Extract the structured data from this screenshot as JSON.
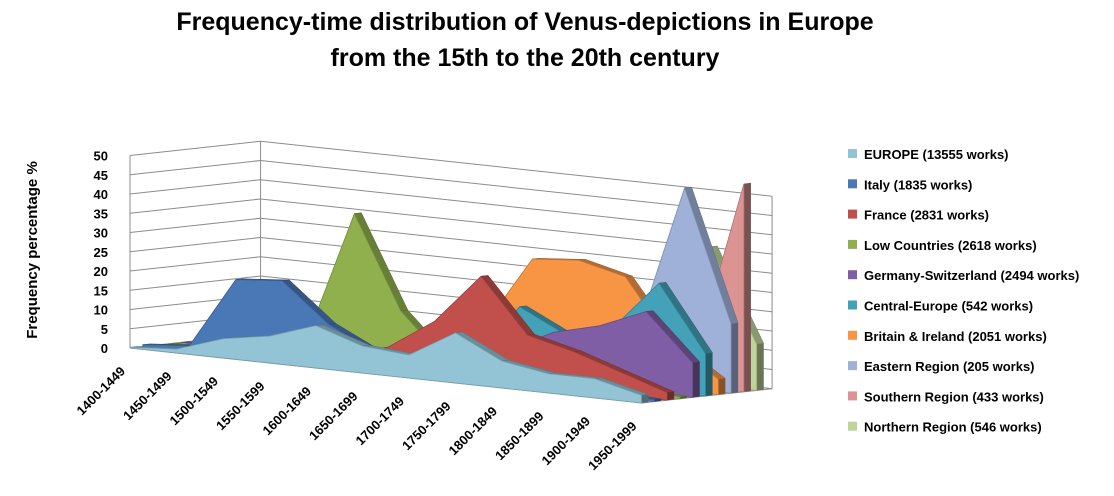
{
  "chart_data": {
    "type": "area",
    "title": "Frequency-time distribution of Venus-depictions in Europe",
    "subtitle": "from the 15th to the 20th century",
    "ylabel": "Frequency percentage %",
    "xlabel": "",
    "ylim": [
      0,
      50
    ],
    "yticks": [
      "0",
      "5",
      "10",
      "15",
      "20",
      "25",
      "30",
      "35",
      "40",
      "45",
      "50"
    ],
    "categories": [
      "1400-1449",
      "1450-1499",
      "1500-1549",
      "1550-1599",
      "1600-1649",
      "1650-1699",
      "1700-1749",
      "1750-1799",
      "1800-1849",
      "1850-1899",
      "1900-1949",
      "1950-1999"
    ],
    "grid": true,
    "legend_position": "right",
    "series": [
      {
        "name": "EUROPE (13555 works)",
        "color": "#93c4d6",
        "values": [
          0.2,
          1,
          5,
          7,
          11,
          7,
          6,
          13,
          7,
          5,
          5,
          2
        ]
      },
      {
        "name": "Italy (1835 works)",
        "color": "#4a77b6",
        "values": [
          0.5,
          1.5,
          20,
          21,
          11,
          5,
          4,
          3,
          2,
          1,
          1,
          0.5
        ]
      },
      {
        "name": "France (2831 works)",
        "color": "#c1504d",
        "values": [
          0,
          0.5,
          1,
          2,
          3,
          6,
          14,
          27,
          13,
          10,
          6,
          2
        ]
      },
      {
        "name": "Low Countries (2618 works)",
        "color": "#8fb04c",
        "values": [
          0,
          0.5,
          4,
          6,
          39,
          15,
          3,
          2,
          1,
          1,
          1,
          0.5
        ]
      },
      {
        "name": "Germany-Switzerland (2494 works)",
        "color": "#7f5ea5",
        "values": [
          0,
          0.5,
          4,
          10,
          9,
          5,
          6,
          7,
          13,
          16,
          21,
          9
        ]
      },
      {
        "name": "Central-Europe (542 works)",
        "color": "#43a1b8",
        "values": [
          0,
          0,
          0,
          1,
          2,
          2,
          3,
          18,
          12,
          15,
          28,
          11
        ]
      },
      {
        "name": "Britain & Ireland (2051 works)",
        "color": "#f79545",
        "values": [
          0,
          0,
          0,
          0,
          2,
          2,
          12,
          30,
          31,
          28,
          12,
          4
        ]
      },
      {
        "name": "Eastern Region (205 works)",
        "color": "#9fb0d9",
        "values": [
          0,
          0,
          0,
          0,
          0,
          0,
          2,
          3,
          10,
          14,
          52,
          18
        ]
      },
      {
        "name": "Southern Region (433 works)",
        "color": "#db9491",
        "values": [
          0,
          0,
          1,
          1,
          2,
          3,
          2,
          3,
          3,
          6,
          10,
          54
        ]
      },
      {
        "name": "Northern Region (546 works)",
        "color": "#bfd49a",
        "values": [
          0,
          0,
          0,
          0,
          2,
          1,
          0,
          5,
          9,
          24,
          36,
          12
        ]
      }
    ]
  }
}
